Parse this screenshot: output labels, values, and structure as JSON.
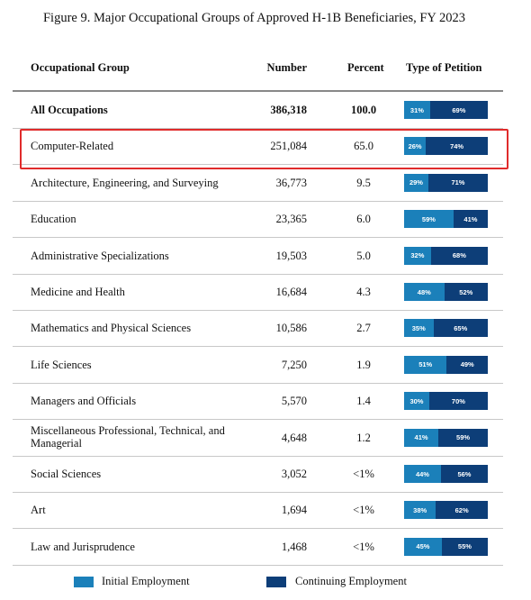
{
  "chart_data": {
    "type": "table",
    "title": "Figure 9. Major Occupational Groups of Approved H-1B Beneficiaries, FY 2023",
    "columns": [
      "Occupational Group",
      "Number",
      "Percent",
      "Type of Petition"
    ],
    "rows": [
      {
        "group": "All Occupations",
        "number": "386,318",
        "percent": "100.0",
        "initial": 31,
        "continuing": 69,
        "initial_label": "31%",
        "continuing_label": "69%",
        "bold": true
      },
      {
        "group": "Computer-Related",
        "number": "251,084",
        "percent": "65.0",
        "initial": 26,
        "continuing": 74,
        "initial_label": "26%",
        "continuing_label": "74%",
        "highlighted": true
      },
      {
        "group": "Architecture, Engineering, and Surveying",
        "number": "36,773",
        "percent": "9.5",
        "initial": 29,
        "continuing": 71,
        "initial_label": "29%",
        "continuing_label": "71%"
      },
      {
        "group": "Education",
        "number": "23,365",
        "percent": "6.0",
        "initial": 59,
        "continuing": 41,
        "initial_label": "59%",
        "continuing_label": "41%"
      },
      {
        "group": "Administrative Specializations",
        "number": "19,503",
        "percent": "5.0",
        "initial": 32,
        "continuing": 68,
        "initial_label": "32%",
        "continuing_label": "68%"
      },
      {
        "group": "Medicine and Health",
        "number": "16,684",
        "percent": "4.3",
        "initial": 48,
        "continuing": 52,
        "initial_label": "48%",
        "continuing_label": "52%"
      },
      {
        "group": "Mathematics and Physical Sciences",
        "number": "10,586",
        "percent": "2.7",
        "initial": 35,
        "continuing": 65,
        "initial_label": "35%",
        "continuing_label": "65%"
      },
      {
        "group": "Life Sciences",
        "number": "7,250",
        "percent": "1.9",
        "initial": 51,
        "continuing": 49,
        "initial_label": "51%",
        "continuing_label": "49%"
      },
      {
        "group": "Managers and Officials",
        "number": "5,570",
        "percent": "1.4",
        "initial": 30,
        "continuing": 70,
        "initial_label": "30%",
        "continuing_label": "70%"
      },
      {
        "group": "Miscellaneous Professional, Technical, and Managerial",
        "number": "4,648",
        "percent": "1.2",
        "initial": 41,
        "continuing": 59,
        "initial_label": "41%",
        "continuing_label": "59%"
      },
      {
        "group": "Social Sciences",
        "number": "3,052",
        "percent": "<1%",
        "initial": 44,
        "continuing": 56,
        "initial_label": "44%",
        "continuing_label": "56%"
      },
      {
        "group": "Art",
        "number": "1,694",
        "percent": "<1%",
        "initial": 38,
        "continuing": 62,
        "initial_label": "38%",
        "continuing_label": "62%"
      },
      {
        "group": "Law and Jurisprudence",
        "number": "1,468",
        "percent": "<1%",
        "initial": 45,
        "continuing": 55,
        "initial_label": "45%",
        "continuing_label": "55%"
      }
    ],
    "legend": [
      {
        "name": "Initial Employment",
        "color": "#1b80ba"
      },
      {
        "name": "Continuing Employment",
        "color": "#0d3e78"
      }
    ],
    "highlight_color": "#e02b2b"
  }
}
